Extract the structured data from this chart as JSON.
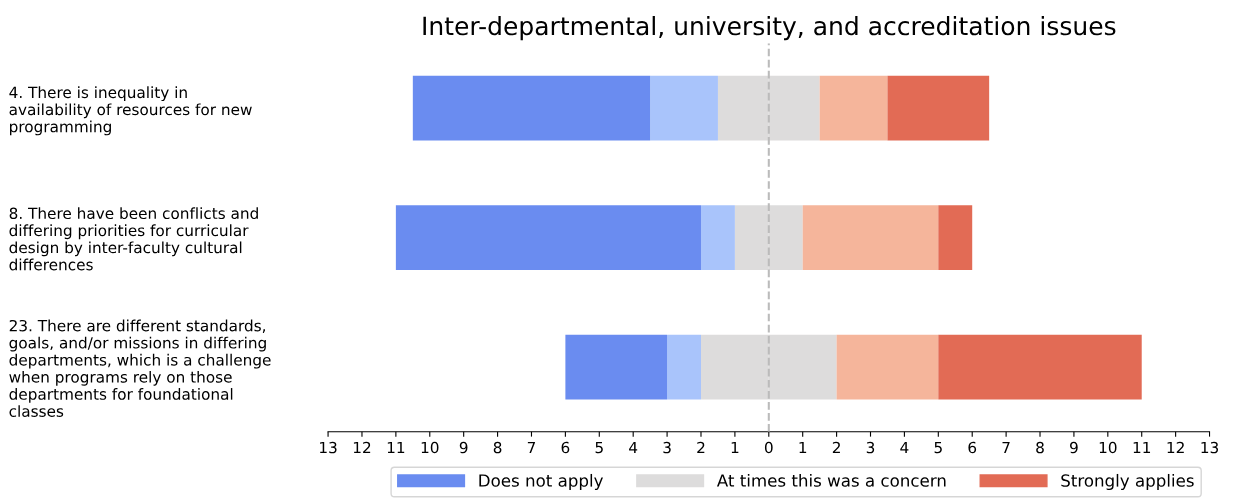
{
  "chart_data": {
    "type": "bar",
    "title": "Inter-departmental, university, and accreditation issues",
    "orientation": "horizontal",
    "stacked": true,
    "categories": [
      "4. There is inequality in\navailability of resources for new\nprogramming",
      "8. There have been conflicts and\ndiffering priorities for curricular\ndesign by inter-faculty cultural\ndifferences",
      "23. There are different standards,\ngoals, and/or missions in differing\ndepartments, which is a challenge\nwhen programs rely on those\ndepartments for foundational\nclasses"
    ],
    "series": [
      {
        "name": "At times this was a concern",
        "color": "#dddcdc",
        "values": [
          -1.5,
          -1,
          -2
        ]
      },
      {
        "color": "#a9c4fb",
        "values": [
          -2,
          -1,
          -1
        ]
      },
      {
        "name": "Does not apply",
        "color": "#6a8cf0",
        "values": [
          -7,
          -9,
          -3
        ]
      },
      {
        "color": "#dddcdc",
        "values": [
          1.5,
          1,
          2
        ]
      },
      {
        "color": "#f5b59b",
        "values": [
          2,
          4,
          3
        ]
      },
      {
        "name": "Strongly applies",
        "color": "#e26b55",
        "values": [
          3,
          1,
          6
        ]
      }
    ],
    "xlim": [
      -13,
      13
    ],
    "xticks": [
      {
        "value": -13,
        "label": "13"
      },
      {
        "value": -12,
        "label": "12"
      },
      {
        "value": -11,
        "label": "11"
      },
      {
        "value": -10,
        "label": "10"
      },
      {
        "value": -9,
        "label": "9"
      },
      {
        "value": -8,
        "label": "8"
      },
      {
        "value": -7,
        "label": "7"
      },
      {
        "value": -6,
        "label": "6"
      },
      {
        "value": -5,
        "label": "5"
      },
      {
        "value": -4,
        "label": "4"
      },
      {
        "value": -3,
        "label": "3"
      },
      {
        "value": -2,
        "label": "2"
      },
      {
        "value": -1,
        "label": "1"
      },
      0,
      1,
      2,
      3,
      4,
      5,
      6,
      7,
      8,
      9,
      10,
      11,
      12,
      13
    ],
    "ref_lines": [
      {
        "axis": "x",
        "value": 0,
        "color": "#bbbbbb",
        "line_style": "dashed"
      }
    ],
    "legend": "bottom right",
    "grid": false
  }
}
